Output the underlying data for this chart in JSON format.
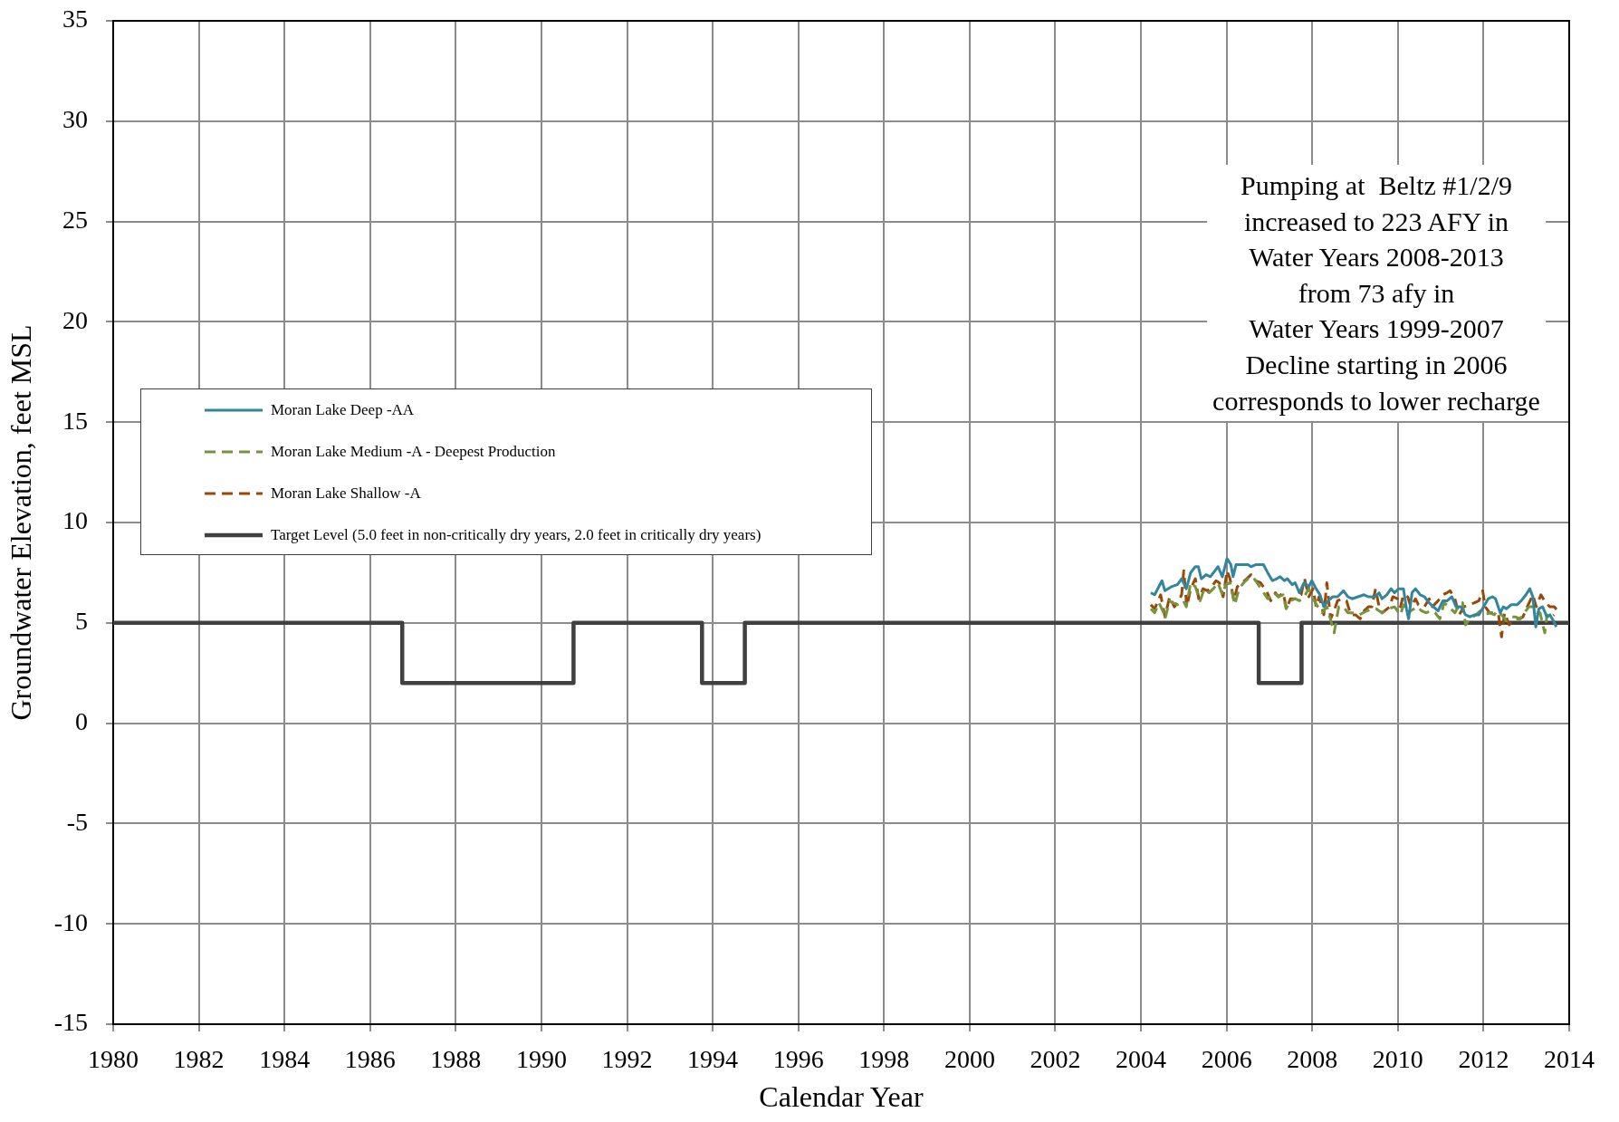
{
  "chart_data": {
    "type": "line",
    "xlabel": "Calendar Year",
    "ylabel": "Groundwater Elevation, feet MSL",
    "annotations": [
      "Pumping at  Beltz #1/2/9\nincreased to 223 AFY in\nWater Years 2008-2013\nfrom 73 afy in\nWater Years 1999-2007\nDecline starting in 2006\ncorresponds to lower recharge"
    ],
    "xlim": [
      1980,
      2014
    ],
    "xticks": [
      1980,
      1982,
      1984,
      1986,
      1988,
      1990,
      1992,
      1994,
      1996,
      1998,
      2000,
      2002,
      2004,
      2006,
      2008,
      2010,
      2012,
      2014
    ],
    "ylim": [
      -15,
      35
    ],
    "yticks": [
      -15,
      -10,
      -5,
      0,
      5,
      10,
      15,
      20,
      25,
      30,
      35
    ],
    "grid": true,
    "legend": "left",
    "marker": "none",
    "series": [
      {
        "name": "Moran Lake Deep -AA",
        "color": "#31859c",
        "line_style": "solid",
        "x": [
          2004.23,
          2004.32,
          2004.49,
          2004.56,
          2004.71,
          2004.85,
          2004.95,
          2005.06,
          2005.16,
          2005.27,
          2005.34,
          2005.41,
          2005.52,
          2005.62,
          2005.73,
          2005.8,
          2005.9,
          2006.01,
          2006.1,
          2006.15,
          2006.22,
          2006.36,
          2006.5,
          2006.57,
          2006.68,
          2006.86,
          2006.96,
          2007.07,
          2007.17,
          2007.25,
          2007.35,
          2007.42,
          2007.53,
          2007.6,
          2007.7,
          2007.81,
          2007.92,
          2007.99,
          2008.09,
          2008.18,
          2008.27,
          2008.37,
          2008.48,
          2008.59,
          2008.73,
          2008.83,
          2008.93,
          2009.07,
          2009.21,
          2009.31,
          2009.46,
          2009.56,
          2009.63,
          2009.74,
          2009.84,
          2009.92,
          2010.02,
          2010.13,
          2010.2,
          2010.25,
          2010.33,
          2010.41,
          2010.52,
          2010.62,
          2010.73,
          2010.83,
          2010.94,
          2011.05,
          2011.15,
          2011.26,
          2011.36,
          2011.47,
          2011.58,
          2011.68,
          2011.79,
          2011.89,
          2012.0,
          2012.11,
          2012.21,
          2012.28,
          2012.39,
          2012.46,
          2012.53,
          2012.64,
          2012.78,
          2012.88,
          2012.99,
          2013.08,
          2013.15,
          2013.22,
          2013.29,
          2013.38,
          2013.48,
          2013.55,
          2013.63,
          2013.7
        ],
        "values": [
          6.5,
          6.4,
          7.1,
          6.6,
          6.8,
          6.9,
          7.2,
          6.7,
          7.5,
          7.8,
          7.8,
          7.2,
          7.4,
          7.3,
          7.6,
          7.8,
          7.3,
          8.2,
          7.9,
          7.3,
          7.9,
          7.9,
          7.9,
          7.8,
          7.9,
          7.9,
          7.5,
          7.1,
          7.2,
          7.3,
          7.1,
          7.2,
          6.9,
          7.0,
          6.5,
          7.0,
          6.8,
          7.1,
          6.7,
          6.4,
          5.8,
          6.1,
          6.3,
          6.3,
          6.6,
          6.3,
          6.2,
          6.3,
          6.4,
          6.3,
          6.3,
          6.5,
          6.2,
          6.4,
          6.7,
          6.5,
          6.7,
          6.7,
          5.7,
          5.2,
          6.5,
          6.7,
          6.4,
          6.3,
          6.0,
          5.8,
          5.6,
          6.1,
          6.1,
          6.3,
          5.8,
          5.8,
          5.4,
          5.3,
          5.4,
          5.4,
          5.8,
          6.2,
          6.3,
          6.2,
          5.5,
          5.8,
          5.7,
          5.9,
          5.9,
          6.1,
          6.4,
          6.7,
          6.3,
          4.8,
          5.7,
          5.8,
          5.3,
          5.4,
          5.1,
          4.8
        ]
      },
      {
        "name": "Moran Lake Medium -A - Deepest Production",
        "color": "#77933c",
        "line_style": "dashed",
        "x": [
          2004.23,
          2004.32,
          2004.42,
          2004.53,
          2004.56,
          2004.67,
          2004.74,
          2004.85,
          2004.99,
          2005.06,
          2005.16,
          2005.27,
          2005.38,
          2005.48,
          2005.59,
          2005.69,
          2005.8,
          2005.9,
          2005.98,
          2006.08,
          2006.19,
          2006.29,
          2006.4,
          2006.5,
          2006.61,
          2006.71,
          2006.96,
          2007.1,
          2007.21,
          2007.32,
          2007.39,
          2007.49,
          2007.6,
          2007.7,
          2007.81,
          2007.92,
          2008.02,
          2008.13,
          2008.23,
          2008.34,
          2008.41,
          2008.51,
          2008.62,
          2008.73,
          2008.83,
          2008.94,
          2009.1,
          2009.28,
          2009.42,
          2009.49,
          2009.63,
          2009.77,
          2009.92,
          2010.06,
          2010.13,
          2010.23,
          2010.3,
          2010.45,
          2010.55,
          2010.66,
          2010.76,
          2010.87,
          2010.98,
          2011.08,
          2011.19,
          2011.33,
          2011.43,
          2011.51,
          2011.58,
          2011.68,
          2011.82,
          2011.93,
          2012.04,
          2012.14,
          2012.25,
          2012.32,
          2012.42,
          2012.53,
          2012.64,
          2012.74,
          2012.85,
          2012.95,
          2013.06,
          2013.17,
          2013.25,
          2013.32,
          2013.43,
          2013.48,
          2013.55,
          2013.65
        ],
        "values": [
          5.7,
          5.5,
          6.0,
          5.5,
          5.2,
          6.1,
          6.0,
          5.9,
          6.1,
          5.8,
          7.0,
          6.8,
          6.1,
          6.7,
          6.5,
          6.7,
          7.0,
          6.4,
          6.9,
          7.0,
          5.9,
          6.7,
          7.0,
          7.2,
          7.3,
          7.0,
          6.2,
          6.5,
          6.3,
          6.4,
          5.7,
          6.1,
          6.2,
          6.1,
          6.3,
          6.7,
          6.2,
          5.8,
          5.5,
          5.8,
          5.3,
          4.5,
          5.8,
          5.8,
          5.5,
          5.5,
          5.4,
          5.6,
          5.7,
          5.7,
          5.5,
          5.7,
          5.8,
          5.4,
          5.9,
          5.4,
          5.6,
          5.8,
          5.6,
          5.5,
          5.6,
          5.5,
          5.2,
          6.0,
          5.8,
          5.5,
          5.9,
          6.0,
          4.9,
          5.2,
          5.4,
          5.6,
          5.4,
          5.5,
          5.4,
          5.6,
          5.4,
          5.1,
          5.3,
          5.3,
          5.2,
          5.5,
          5.8,
          5.8,
          5.5,
          5.5,
          4.5,
          5.4,
          5.2,
          5.4
        ]
      },
      {
        "name": "Moran Lake Shallow -A",
        "color": "#984807",
        "line_style": "dashed",
        "x": [
          2004.23,
          2004.32,
          2004.46,
          2004.56,
          2004.67,
          2004.78,
          2004.88,
          2004.95,
          2005.0,
          2005.07,
          2005.16,
          2005.27,
          2005.35,
          2005.45,
          2005.55,
          2005.62,
          2005.75,
          2005.83,
          2005.92,
          2006.01,
          2006.08,
          2006.17,
          2006.25,
          2006.36,
          2006.47,
          2006.57,
          2006.68,
          2006.79,
          2006.93,
          2007.03,
          2007.14,
          2007.21,
          2007.32,
          2007.4,
          2007.49,
          2007.63,
          2007.74,
          2007.82,
          2007.92,
          2008.02,
          2008.09,
          2008.16,
          2008.27,
          2008.34,
          2008.43,
          2008.51,
          2008.59,
          2008.71,
          2008.8,
          2008.9,
          2009.01,
          2009.12,
          2009.21,
          2009.31,
          2009.39,
          2009.48,
          2009.56,
          2009.63,
          2009.81,
          2009.88,
          2009.99,
          2010.06,
          2010.13,
          2010.23,
          2010.3,
          2010.41,
          2010.48,
          2010.62,
          2010.73,
          2010.8,
          2010.94,
          2011.05,
          2011.15,
          2011.22,
          2011.33,
          2011.43,
          2011.54,
          2011.65,
          2011.79,
          2011.89,
          2011.98,
          2012.04,
          2012.14,
          2012.25,
          2012.35,
          2012.42,
          2012.49,
          2012.6,
          2012.74,
          2012.85,
          2012.92,
          2013.02,
          2013.15,
          2013.23,
          2013.34,
          2013.45,
          2013.55,
          2013.65,
          2013.73
        ],
        "values": [
          5.9,
          5.7,
          6.4,
          5.3,
          6.3,
          5.8,
          6.1,
          6.4,
          7.6,
          5.8,
          6.7,
          7.2,
          6.2,
          6.7,
          6.6,
          6.7,
          7.1,
          7.0,
          6.3,
          7.6,
          7.2,
          6.1,
          6.8,
          7.0,
          7.2,
          7.4,
          7.1,
          7.0,
          6.6,
          6.1,
          6.5,
          6.3,
          6.5,
          5.7,
          6.2,
          6.2,
          6.4,
          7.2,
          6.3,
          6.7,
          5.8,
          6.3,
          5.4,
          7.0,
          5.2,
          5.6,
          6.1,
          6.2,
          6.1,
          5.4,
          5.4,
          5.2,
          5.6,
          5.8,
          5.8,
          6.7,
          5.8,
          5.5,
          5.8,
          6.3,
          6.2,
          5.8,
          6.4,
          6.3,
          5.8,
          6.2,
          5.9,
          5.8,
          6.2,
          5.8,
          6.1,
          6.4,
          6.5,
          6.6,
          6.2,
          5.4,
          5.8,
          5.9,
          6.0,
          6.1,
          6.6,
          5.8,
          5.5,
          5.5,
          5.4,
          4.3,
          5.5,
          4.9,
          5.2,
          5.2,
          5.3,
          5.8,
          6.4,
          5.8,
          6.4,
          6.0,
          5.8,
          5.8,
          5.6
        ]
      },
      {
        "name": "Target Level (5.0 feet in non-critically dry years, 2.0 feet in critically dry years)",
        "color": "#404040",
        "type": "step",
        "line_style": "solid",
        "x": [
          1980,
          1986.75,
          1990.75,
          1993.75,
          1994.75,
          2006.75,
          2007.75,
          2014
        ],
        "values": [
          5,
          2,
          5,
          2,
          5,
          2,
          5,
          5
        ]
      }
    ]
  }
}
